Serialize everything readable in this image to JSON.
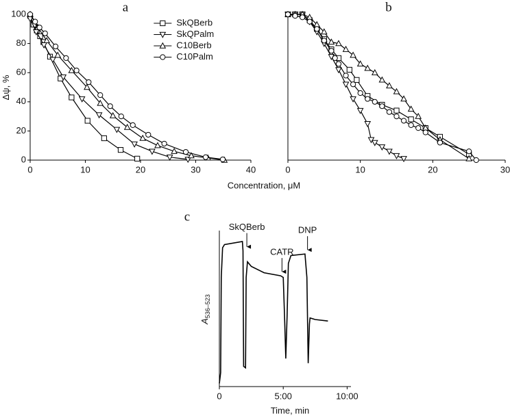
{
  "chart_data": [
    {
      "type": "line",
      "title": "a",
      "ylabel": "Δψ, %",
      "xlabel": "Concentration, μM",
      "xlim": [
        0,
        40
      ],
      "xticks": [
        0,
        10,
        20,
        30,
        40
      ],
      "ylim": [
        0,
        100
      ],
      "yticks": [
        0,
        20,
        40,
        60,
        80,
        100
      ],
      "legend": "upper right",
      "series": [
        {
          "name": "SkQBerb",
          "marker": "square",
          "color": "#000000",
          "x": [
            0,
            0.6,
            1.2,
            1.8,
            2.4,
            3.6,
            5.5,
            7.5,
            10.4,
            13.4,
            16.4,
            19.4
          ],
          "values": [
            99,
            93,
            89,
            85,
            81,
            71,
            56,
            43,
            27,
            15,
            7,
            1
          ]
        },
        {
          "name": "SkQPalm",
          "marker": "triangle-down",
          "color": "#000000",
          "x": [
            0,
            1.1,
            2.5,
            4.1,
            6,
            9.4,
            12.5,
            15.7,
            18.9,
            22.1,
            25.3,
            28.6
          ],
          "values": [
            97,
            88,
            79,
            69,
            57,
            42,
            31,
            21,
            11,
            6,
            2,
            0.5
          ]
        },
        {
          "name": "C10Berb",
          "marker": "triangle-up",
          "color": "#000000",
          "x": [
            0,
            1.4,
            3,
            5,
            7.5,
            10.3,
            12.7,
            15,
            17.6,
            20.4,
            23.1,
            26.1,
            29.2,
            32.2,
            35.2
          ],
          "values": [
            100,
            91,
            82,
            72,
            61.5,
            50,
            39,
            30.5,
            22.5,
            15,
            10,
            6,
            3,
            1.5,
            0
          ]
        },
        {
          "name": "C10Palm",
          "marker": "circle",
          "color": "#000000",
          "x": [
            0,
            0.9,
            1.7,
            2.7,
            4.6,
            6.5,
            8.4,
            10.6,
            12.7,
            14.5,
            16.5,
            18.6,
            21.4,
            24.3,
            28.2,
            31.8,
            34.9
          ],
          "values": [
            100,
            95,
            91,
            87,
            78,
            70,
            61.5,
            53.5,
            44.6,
            37,
            30,
            24,
            17.4,
            11.3,
            5.6,
            2,
            0.5
          ]
        }
      ]
    },
    {
      "type": "line",
      "title": "b",
      "xlim": [
        0,
        30
      ],
      "xticks": [
        0,
        10,
        20,
        30
      ],
      "ylim": [
        0,
        100
      ],
      "series": [
        {
          "marker": "square",
          "color": "#000000",
          "x": [
            0,
            1,
            2,
            3,
            4,
            5,
            6,
            7,
            8.5,
            9.5,
            11,
            13,
            15,
            17,
            19,
            21,
            25
          ],
          "values": [
            100,
            100,
            100,
            96,
            90,
            83,
            76,
            70,
            62,
            55,
            44,
            38,
            34,
            28,
            22,
            16,
            4
          ]
        },
        {
          "marker": "triangle-down",
          "color": "#000000",
          "x": [
            0,
            1,
            2,
            3,
            4,
            5,
            6,
            7,
            8,
            9,
            10,
            11,
            11.5,
            12,
            13,
            14,
            15,
            16
          ],
          "values": [
            100,
            100,
            100,
            95,
            88,
            80,
            71,
            62,
            52,
            42,
            34,
            25,
            14,
            12,
            9,
            6,
            3,
            1
          ]
        },
        {
          "marker": "triangle-up",
          "color": "#000000",
          "x": [
            0,
            1,
            2,
            3,
            4,
            5,
            6,
            7,
            8,
            9,
            10,
            11,
            12,
            13,
            14,
            15,
            16,
            17,
            18,
            19,
            21,
            25
          ],
          "values": [
            100,
            100,
            100,
            98,
            93,
            88,
            81,
            80,
            76,
            72,
            66,
            63,
            60,
            55,
            51,
            47,
            42,
            35,
            30,
            22,
            14,
            1
          ]
        },
        {
          "marker": "circle",
          "color": "#000000",
          "x": [
            0,
            1,
            2,
            3,
            4,
            5,
            6,
            6.5,
            7,
            8,
            9,
            10,
            11,
            12,
            13,
            14,
            15,
            16,
            17,
            18,
            19,
            21,
            25,
            26
          ],
          "values": [
            100,
            99,
            98,
            95,
            90,
            82,
            75,
            70,
            66,
            58,
            52,
            46,
            42,
            40,
            37,
            33,
            30,
            27,
            24,
            22,
            19,
            12,
            6,
            0
          ]
        }
      ]
    },
    {
      "type": "trace",
      "title": "c",
      "ylabel": "A",
      "ylabel_sub": "536–523",
      "xlabel": "Time, min",
      "xlim": [
        0,
        10.3
      ],
      "xticks": [
        0,
        {
          "value": 5,
          "label": "5:00"
        },
        {
          "value": 10,
          "label": "10:00"
        }
      ],
      "ylim": [
        0,
        1
      ],
      "series": [
        {
          "color": "#000000",
          "x": [
            0,
            0.1,
            0.15,
            0.25,
            0.4,
            1.8,
            1.85,
            1.9,
            2.05,
            2.1,
            2.2,
            2.5,
            3.5,
            4.8,
            5.0,
            5.1,
            5.2,
            5.3,
            5.4,
            5.6,
            6.7,
            6.85,
            6.95,
            7.05,
            7.1,
            7.5,
            8.5
          ],
          "values": [
            0.02,
            0.09,
            0.7,
            0.89,
            0.91,
            0.93,
            0.87,
            0.13,
            0.12,
            0.7,
            0.8,
            0.77,
            0.73,
            0.71,
            0.7,
            0.45,
            0.18,
            0.45,
            0.79,
            0.84,
            0.85,
            0.7,
            0.15,
            0.4,
            0.44,
            0.43,
            0.42
          ]
        }
      ],
      "annotations": [
        {
          "text": "SkQBerb",
          "x": 2.15
        },
        {
          "text": "CATR",
          "x": 4.9
        },
        {
          "text": "DNP",
          "x": 6.9
        }
      ]
    }
  ]
}
